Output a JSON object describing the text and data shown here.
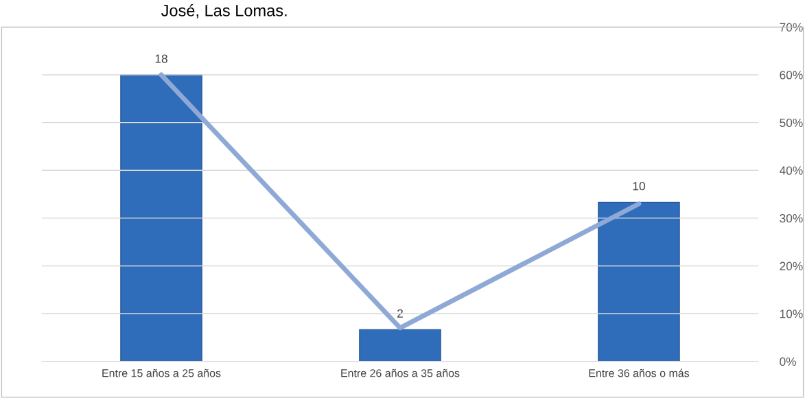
{
  "chart_data": {
    "type": "bar",
    "title": "José, Las Lomas.",
    "categories": [
      "Entre 15 años a 25 años",
      "Entre 26 años a 35 años",
      "Entre 36 años o más"
    ],
    "series": [
      {
        "color": "#2f6cb9",
        "values": [
          18,
          2,
          10
        ],
        "value_labels": [
          "18",
          "2",
          "10"
        ]
      },
      {
        "type": "line",
        "axis": "y2",
        "color": "#8fa9d6",
        "values": [
          60,
          7,
          33
        ]
      }
    ],
    "ylim": [
      0,
      21
    ],
    "y2lim": [
      0,
      70
    ],
    "y2ticks": [
      {
        "value": 0,
        "label": "0%"
      },
      {
        "value": 10,
        "label": "10%"
      },
      {
        "value": 20,
        "label": "20%"
      },
      {
        "value": 30,
        "label": "30%"
      },
      {
        "value": 40,
        "label": "40%"
      },
      {
        "value": 50,
        "label": "50%"
      },
      {
        "value": 60,
        "label": "60%"
      },
      {
        "value": 70,
        "label": "70%"
      }
    ],
    "grid": "y2",
    "marker": "none",
    "line_style": "solid"
  }
}
